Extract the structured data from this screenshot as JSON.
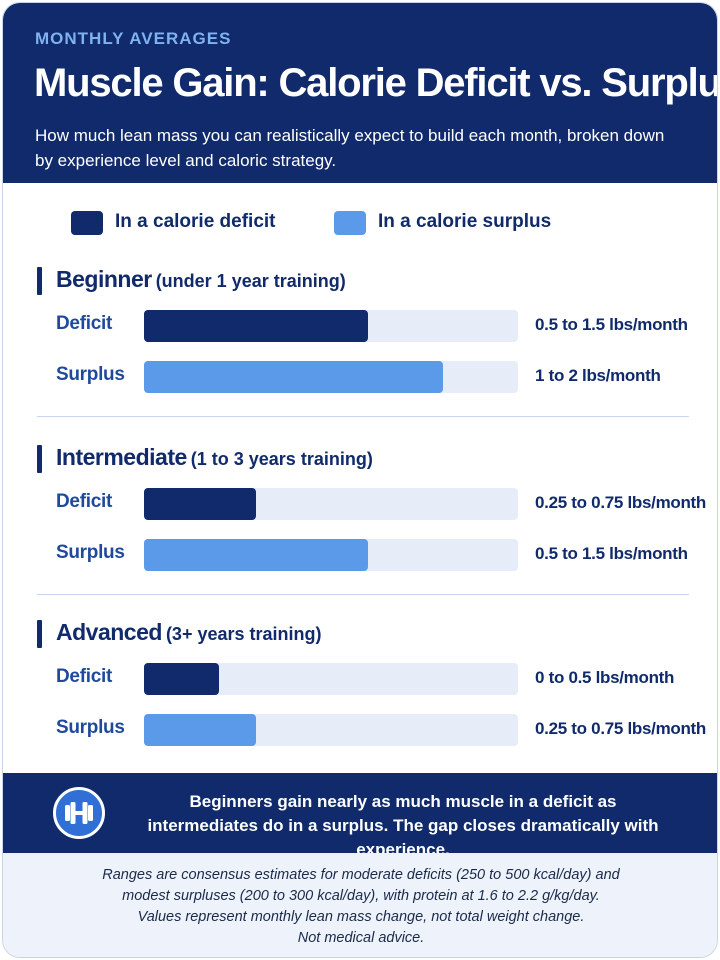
{
  "header": {
    "eyebrow": "MONTHLY AVERAGES",
    "title": "Muscle Gain: Calorie Deficit vs. Surplus",
    "subtitle": "How much lean mass you can realistically expect to build each month, broken down by experience level and caloric strategy."
  },
  "colors": {
    "navy": "#102a6b",
    "deficit": "#102a6b",
    "surplus": "#5b9ae8",
    "track": "#e6edf9",
    "accent_blue": "#2f6fd6"
  },
  "legend": {
    "deficit": "In a calorie deficit",
    "surplus": "In a calorie surplus"
  },
  "chart_data": {
    "type": "bar",
    "orientation": "horizontal",
    "unit": "lbs/month",
    "xlim": [
      0,
      2.5
    ],
    "series": [
      {
        "name": "In a calorie deficit",
        "color": "#102a6b"
      },
      {
        "name": "In a calorie surplus",
        "color": "#5b9ae8"
      }
    ],
    "groups": [
      {
        "name": "Beginner",
        "sub": "(under 1 year training)",
        "rows": [
          {
            "label": "Deficit",
            "series": "deficit",
            "min": 0.5,
            "max": 1.5,
            "range": "0.5 to 1.5 lbs/month"
          },
          {
            "label": "Surplus",
            "series": "surplus",
            "min": 1,
            "max": 2,
            "range": "1 to 2 lbs/month"
          }
        ]
      },
      {
        "name": "Intermediate",
        "sub": "(1 to 3 years training)",
        "rows": [
          {
            "label": "Deficit",
            "series": "deficit",
            "min": 0.25,
            "max": 0.75,
            "range": "0.25 to 0.75 lbs/month"
          },
          {
            "label": "Surplus",
            "series": "surplus",
            "min": 0.5,
            "max": 1.5,
            "range": "0.5 to 1.5 lbs/month"
          }
        ]
      },
      {
        "name": "Advanced",
        "sub": "(3+ years training)",
        "rows": [
          {
            "label": "Deficit",
            "series": "deficit",
            "min": 0,
            "max": 0.5,
            "range": "0 to 0.5 lbs/month"
          },
          {
            "label": "Surplus",
            "series": "surplus",
            "min": 0.25,
            "max": 0.75,
            "range": "0.25 to 0.75 lbs/month"
          }
        ]
      }
    ]
  },
  "callout": {
    "icon": "dumbbell-icon",
    "line1": "Beginners gain nearly as much muscle in a deficit as",
    "line2": "intermediates do in a surplus. The gap closes dramatically with experience."
  },
  "footnote": {
    "line1": "Ranges are consensus estimates for moderate deficits (250 to 500 kcal/day) and",
    "line2": "modest surpluses (200 to 300 kcal/day), with protein at 1.6 to 2.2 g/kg/day.",
    "line3": "Values represent monthly lean mass change, not total weight change.",
    "line4": "Not medical advice."
  }
}
